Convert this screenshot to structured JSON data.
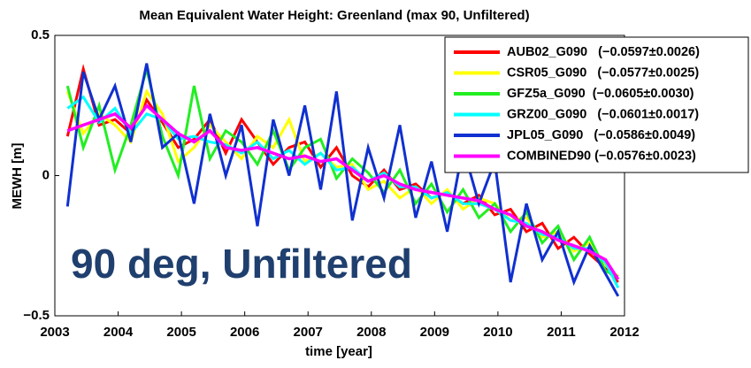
{
  "chart_data": {
    "type": "line",
    "title": "Mean Equivalent Water Height: Greenland (max 90, Unfiltered)",
    "x_label": "time [year]",
    "y_label": "MEWH [m]",
    "annotation": "90 deg, Unfiltered",
    "legend": "upper right",
    "xlim": [
      2003,
      2012
    ],
    "xticks": [
      2003,
      2004,
      2005,
      2006,
      2007,
      2008,
      2009,
      2010,
      2011,
      2012
    ],
    "ylim": [
      -0.5,
      0.5
    ],
    "yticks": [
      {
        "value": -0.5,
        "label": "−0.5"
      },
      0,
      0.5
    ],
    "x": [
      2003.2,
      2003.45,
      2003.7,
      2003.95,
      2004.2,
      2004.45,
      2004.7,
      2004.95,
      2005.2,
      2005.45,
      2005.7,
      2005.95,
      2006.2,
      2006.45,
      2006.7,
      2006.95,
      2007.2,
      2007.45,
      2007.7,
      2007.95,
      2008.2,
      2008.45,
      2008.7,
      2008.95,
      2009.2,
      2009.45,
      2009.7,
      2009.95,
      2010.2,
      2010.45,
      2010.7,
      2010.95,
      2011.2,
      2011.45,
      2011.7,
      2011.9
    ],
    "series": [
      {
        "name": "AUB02_G090   (−0.0597±0.0026)",
        "color": "#ff0000",
        "values": [
          0.14,
          0.38,
          0.18,
          0.2,
          0.15,
          0.27,
          0.19,
          0.1,
          0.13,
          0.2,
          0.08,
          0.2,
          0.12,
          0.04,
          0.1,
          0.12,
          0.03,
          0.1,
          0.0,
          -0.04,
          0.02,
          -0.05,
          -0.03,
          -0.08,
          -0.06,
          -0.1,
          -0.07,
          -0.14,
          -0.12,
          -0.2,
          -0.17,
          -0.26,
          -0.22,
          -0.28,
          -0.33,
          -0.38
        ]
      },
      {
        "name": "CSR05_G090   (−0.0577±0.0025)",
        "color": "#ffff00",
        "values": [
          0.3,
          0.15,
          0.22,
          0.18,
          0.12,
          0.3,
          0.22,
          0.05,
          0.1,
          0.18,
          0.12,
          0.06,
          0.14,
          0.1,
          0.2,
          0.05,
          0.08,
          0.03,
          0.04,
          -0.05,
          -0.02,
          -0.08,
          -0.04,
          -0.1,
          -0.05,
          -0.12,
          -0.08,
          -0.1,
          -0.16,
          -0.15,
          -0.22,
          -0.2,
          -0.27,
          -0.24,
          -0.32,
          -0.36
        ]
      },
      {
        "name": "GFZ5a_G090  (−0.0605±0.0030)",
        "color": "#22ee22",
        "values": [
          0.32,
          0.1,
          0.25,
          0.02,
          0.18,
          0.38,
          0.14,
          0.0,
          0.32,
          0.06,
          0.16,
          0.12,
          0.04,
          0.16,
          0.02,
          0.1,
          0.13,
          -0.01,
          0.06,
          0.01,
          -0.06,
          0.02,
          -0.1,
          -0.03,
          -0.13,
          -0.05,
          -0.15,
          -0.1,
          -0.2,
          -0.13,
          -0.24,
          -0.18,
          -0.3,
          -0.22,
          -0.34,
          -0.36
        ]
      },
      {
        "name": "GRZ00_G090   (−0.0601±0.0017)",
        "color": "#00ffff",
        "values": [
          0.24,
          0.28,
          0.19,
          0.24,
          0.15,
          0.22,
          0.2,
          0.13,
          0.14,
          0.12,
          0.11,
          0.08,
          0.12,
          0.06,
          0.09,
          0.04,
          0.08,
          0.02,
          0.03,
          -0.02,
          0.01,
          -0.04,
          -0.04,
          -0.08,
          -0.06,
          -0.1,
          -0.1,
          -0.12,
          -0.16,
          -0.17,
          -0.21,
          -0.22,
          -0.26,
          -0.26,
          -0.31,
          -0.4
        ]
      },
      {
        "name": "JPL05_G090   (−0.0586±0.0049)",
        "color": "#1030d0",
        "values": [
          -0.11,
          0.37,
          0.2,
          0.32,
          0.12,
          0.4,
          0.1,
          0.15,
          -0.1,
          0.22,
          0.0,
          0.18,
          -0.18,
          0.2,
          0.0,
          0.25,
          -0.05,
          0.3,
          -0.16,
          0.1,
          -0.08,
          0.18,
          -0.15,
          0.05,
          -0.2,
          0.1,
          -0.1,
          0.05,
          -0.38,
          -0.1,
          -0.3,
          -0.2,
          -0.38,
          -0.25,
          -0.35,
          -0.43
        ]
      },
      {
        "name": "COMBINED90 (−0.0576±0.0023)",
        "color": "#ff00ff",
        "values": [
          0.16,
          0.18,
          0.2,
          0.22,
          0.17,
          0.25,
          0.2,
          0.15,
          0.12,
          0.16,
          0.1,
          0.09,
          0.1,
          0.08,
          0.06,
          0.07,
          0.05,
          0.06,
          0.02,
          -0.02,
          0.0,
          -0.03,
          -0.05,
          -0.06,
          -0.07,
          -0.08,
          -0.09,
          -0.12,
          -0.14,
          -0.18,
          -0.2,
          -0.23,
          -0.25,
          -0.27,
          -0.3,
          -0.37
        ]
      }
    ]
  }
}
